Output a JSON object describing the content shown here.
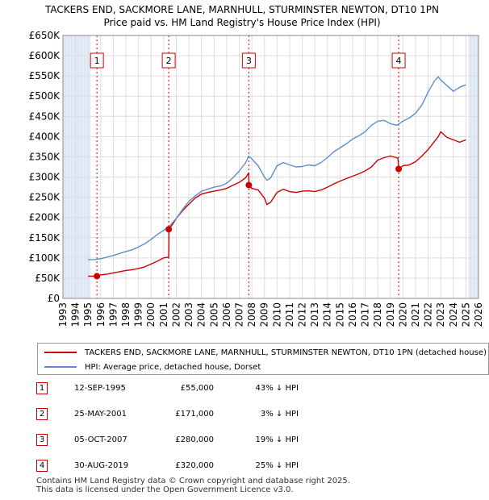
{
  "title_line1": "TACKERS END, SACKMORE LANE, MARNHULL, STURMINSTER NEWTON, DT10 1PN",
  "title_line2": "Price paid vs. HM Land Registry's House Price Index (HPI)",
  "colors": {
    "property": "#cc0000",
    "hpi": "#5b8fd1",
    "marker": "#cc0000",
    "grid": "#dddddd",
    "shade": "#e4ecf7"
  },
  "legend": {
    "property_label": "TACKERS END, SACKMORE LANE, MARNHULL, STURMINSTER NEWTON, DT10 1PN (detached house)",
    "hpi_label": "HPI: Average price, detached house, Dorset"
  },
  "sales": [
    {
      "num": "1",
      "date": "12-SEP-1995",
      "price": "£55,000",
      "hpi": "43% ↓ HPI"
    },
    {
      "num": "2",
      "date": "25-MAY-2001",
      "price": "£171,000",
      "hpi": "3% ↓ HPI"
    },
    {
      "num": "3",
      "date": "05-OCT-2007",
      "price": "£280,000",
      "hpi": "19% ↓ HPI"
    },
    {
      "num": "4",
      "date": "30-AUG-2019",
      "price": "£320,000",
      "hpi": "25% ↓ HPI"
    }
  ],
  "footer_line1": "Contains HM Land Registry data © Crown copyright and database right 2025.",
  "footer_line2": "This data is licensed under the Open Government Licence v3.0.",
  "chart_data": {
    "type": "line",
    "title": "TACKERS END, SACKMORE LANE, MARNHULL, STURMINSTER NEWTON, DT10 1PN",
    "subtitle": "Price paid vs. HM Land Registry's House Price Index (HPI)",
    "xlabel": "",
    "ylabel": "",
    "xlim": [
      1993,
      2026
    ],
    "ylim": [
      0,
      650000
    ],
    "grid": true,
    "legend_position": "bottom",
    "x_ticks": [
      1993,
      1994,
      1995,
      1996,
      1997,
      1998,
      1999,
      2000,
      2001,
      2002,
      2003,
      2004,
      2005,
      2006,
      2007,
      2008,
      2009,
      2010,
      2011,
      2012,
      2013,
      2014,
      2015,
      2016,
      2017,
      2018,
      2019,
      2020,
      2021,
      2022,
      2023,
      2024,
      2025,
      2026
    ],
    "y_ticks": [
      0,
      50000,
      100000,
      150000,
      200000,
      250000,
      300000,
      350000,
      400000,
      450000,
      500000,
      550000,
      600000,
      650000
    ],
    "y_tick_labels": [
      "£0",
      "£50K",
      "£100K",
      "£150K",
      "£200K",
      "£250K",
      "£300K",
      "£350K",
      "£400K",
      "£450K",
      "£500K",
      "£550K",
      "£600K",
      "£650K"
    ],
    "shaded_ranges": [
      [
        1993,
        1995.2
      ],
      [
        2025.2,
        2026
      ]
    ],
    "series": [
      {
        "name": "TACKERS END, SACKMORE LANE, MARNHULL, STURMINSTER NEWTON, DT10 1PN (detached house)",
        "x": [
          1995.0,
          1995.7,
          1996.0,
          1996.5,
          1997.0,
          1997.5,
          1998.0,
          1998.5,
          1999.0,
          1999.5,
          2000.0,
          2000.5,
          2001.0,
          2001.4,
          2001.42,
          2001.7,
          2002.0,
          2002.5,
          2003.0,
          2003.5,
          2004.0,
          2004.5,
          2005.0,
          2005.5,
          2006.0,
          2006.5,
          2007.0,
          2007.5,
          2007.75,
          2007.77,
          2008.0,
          2008.5,
          2009.0,
          2009.2,
          2009.5,
          2010.0,
          2010.5,
          2011.0,
          2011.5,
          2012.0,
          2012.5,
          2013.0,
          2013.5,
          2014.0,
          2014.5,
          2015.0,
          2015.5,
          2016.0,
          2016.5,
          2017.0,
          2017.5,
          2018.0,
          2018.5,
          2019.0,
          2019.6,
          2019.67,
          2020.0,
          2020.5,
          2021.0,
          2021.5,
          2022.0,
          2022.5,
          2022.8,
          2023.0,
          2023.5,
          2024.0,
          2024.5,
          2025.0
        ],
        "values": [
          55000,
          55000,
          58000,
          60000,
          63000,
          66000,
          69000,
          71000,
          74000,
          78000,
          85000,
          92000,
          100000,
          102000,
          171000,
          183000,
          198000,
          217000,
          233000,
          248000,
          258000,
          262000,
          265000,
          268000,
          272000,
          280000,
          287000,
          298000,
          310000,
          280000,
          272000,
          268000,
          248000,
          232000,
          238000,
          262000,
          270000,
          264000,
          262000,
          265000,
          266000,
          264000,
          268000,
          275000,
          283000,
          290000,
          296000,
          302000,
          308000,
          315000,
          325000,
          342000,
          348000,
          352000,
          347000,
          320000,
          328000,
          330000,
          338000,
          352000,
          368000,
          388000,
          400000,
          412000,
          398000,
          392000,
          386000,
          392000
        ],
        "color": "#cc0000"
      },
      {
        "name": "HPI: Average price, detached house, Dorset",
        "x": [
          1995.0,
          1995.5,
          1996.0,
          1996.5,
          1997.0,
          1997.5,
          1998.0,
          1998.5,
          1999.0,
          1999.5,
          2000.0,
          2000.5,
          2001.0,
          2001.5,
          2002.0,
          2002.5,
          2003.0,
          2003.5,
          2004.0,
          2004.5,
          2005.0,
          2005.5,
          2006.0,
          2006.5,
          2007.0,
          2007.5,
          2007.75,
          2008.0,
          2008.5,
          2009.0,
          2009.2,
          2009.5,
          2010.0,
          2010.5,
          2011.0,
          2011.5,
          2012.0,
          2012.5,
          2013.0,
          2013.5,
          2014.0,
          2014.5,
          2015.0,
          2015.5,
          2016.0,
          2016.5,
          2017.0,
          2017.5,
          2018.0,
          2018.5,
          2019.0,
          2019.5,
          2020.0,
          2020.5,
          2021.0,
          2021.5,
          2022.0,
          2022.5,
          2022.8,
          2023.0,
          2023.5,
          2024.0,
          2024.5,
          2025.0
        ],
        "values": [
          96000,
          96000,
          98000,
          102000,
          106000,
          111000,
          116000,
          120000,
          127000,
          135000,
          146000,
          158000,
          168000,
          180000,
          198000,
          220000,
          240000,
          253000,
          265000,
          270000,
          275000,
          278000,
          285000,
          298000,
          315000,
          335000,
          352000,
          345000,
          328000,
          300000,
          292000,
          298000,
          328000,
          336000,
          330000,
          325000,
          326000,
          330000,
          328000,
          336000,
          348000,
          362000,
          372000,
          382000,
          394000,
          402000,
          412000,
          428000,
          438000,
          440000,
          432000,
          428000,
          438000,
          446000,
          458000,
          478000,
          510000,
          538000,
          548000,
          540000,
          526000,
          512000,
          522000,
          528000
        ],
        "color": "#5b8fd1"
      }
    ],
    "annotations": [
      {
        "label": "1",
        "x": 1995.7,
        "y": 55000
      },
      {
        "label": "2",
        "x": 2001.4,
        "y": 171000
      },
      {
        "label": "3",
        "x": 2007.76,
        "y": 280000
      },
      {
        "label": "4",
        "x": 2019.66,
        "y": 320000
      }
    ]
  }
}
